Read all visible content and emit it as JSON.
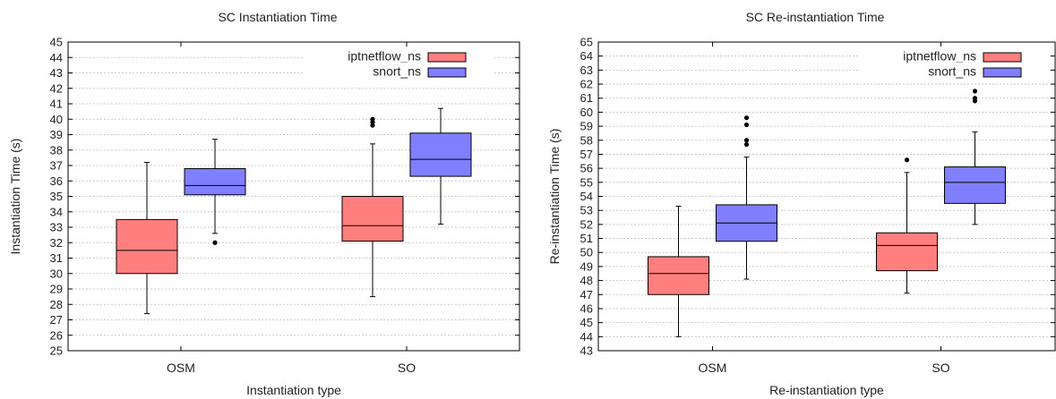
{
  "chart_data": [
    {
      "type": "box",
      "title": "SC Instantiation Time",
      "xlabel": "Instantiation type",
      "ylabel": "Instantiation Time (s)",
      "categories": [
        "OSM",
        "SO"
      ],
      "ylim": [
        25,
        45
      ],
      "yticks": [
        25,
        26,
        27,
        28,
        29,
        30,
        31,
        32,
        33,
        34,
        35,
        36,
        37,
        38,
        39,
        40,
        41,
        42,
        43,
        44,
        45
      ],
      "grid": true,
      "legend_position": "top-right",
      "series": [
        {
          "name": "iptnetflow_ns",
          "color": "#ff7f7f",
          "boxes": [
            {
              "min": 27.4,
              "q1": 30.0,
              "median": 31.5,
              "q3": 33.5,
              "max": 37.2,
              "outliers": []
            },
            {
              "min": 28.5,
              "q1": 32.1,
              "median": 33.1,
              "q3": 35.0,
              "max": 38.4,
              "outliers": [
                39.6,
                39.8,
                40.0
              ]
            }
          ]
        },
        {
          "name": "snort_ns",
          "color": "#7f7fff",
          "boxes": [
            {
              "min": 32.6,
              "q1": 35.1,
              "median": 35.7,
              "q3": 36.8,
              "max": 38.7,
              "outliers": [
                32.0
              ]
            },
            {
              "min": 33.2,
              "q1": 36.3,
              "median": 37.4,
              "q3": 39.1,
              "max": 40.7,
              "outliers": []
            }
          ]
        }
      ]
    },
    {
      "type": "box",
      "title": "SC Re-instantiation Time",
      "xlabel": "Re-instantiation type",
      "ylabel": "Re-instantiation Time (s)",
      "categories": [
        "OSM",
        "SO"
      ],
      "ylim": [
        43,
        65
      ],
      "yticks": [
        43,
        44,
        45,
        46,
        47,
        48,
        49,
        50,
        51,
        52,
        53,
        54,
        55,
        56,
        57,
        58,
        59,
        60,
        61,
        62,
        63,
        64,
        65
      ],
      "grid": true,
      "legend_position": "top-right",
      "series": [
        {
          "name": "iptnetflow_ns",
          "color": "#ff7f7f",
          "boxes": [
            {
              "min": 44.0,
              "q1": 47.0,
              "median": 48.5,
              "q3": 49.7,
              "max": 53.3,
              "outliers": []
            },
            {
              "min": 47.1,
              "q1": 48.7,
              "median": 50.5,
              "q3": 51.4,
              "max": 55.7,
              "outliers": [
                56.6
              ]
            }
          ]
        },
        {
          "name": "snort_ns",
          "color": "#7f7fff",
          "boxes": [
            {
              "min": 48.1,
              "q1": 50.8,
              "median": 52.1,
              "q3": 53.4,
              "max": 56.8,
              "outliers": [
                57.7,
                58.0,
                59.1,
                59.6
              ]
            },
            {
              "min": 52.0,
              "q1": 53.5,
              "median": 55.0,
              "q3": 56.1,
              "max": 58.6,
              "outliers": [
                60.8,
                61.0,
                61.5
              ]
            }
          ]
        }
      ]
    }
  ]
}
